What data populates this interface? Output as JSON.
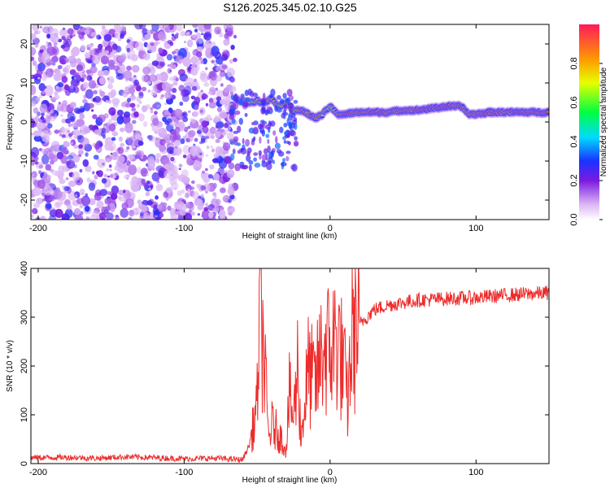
{
  "title": "S126.2025.345.02.10.G25",
  "colors": {
    "snr_line": "#ee2b2b",
    "spec_lowest": "#d9b3f5",
    "spec_highest": "#ff1a33"
  },
  "chart_data": [
    {
      "type": "heatmap",
      "title": "S126.2025.345.02.10.G25",
      "xlabel": "Height of straight line (km)",
      "ylabel": "Frequency (Hz)",
      "xlim": [
        -205,
        150
      ],
      "ylim": [
        -25,
        25
      ],
      "xticks": [
        -200,
        -100,
        0,
        100
      ],
      "yticks": [
        -20,
        -10,
        0,
        10,
        20
      ],
      "colorbar": {
        "label": "Normalized spectral amplitude",
        "range": [
          0,
          1
        ],
        "ticks": [
          "0.0",
          "0.2",
          "0.4",
          "0.6",
          "0.8"
        ]
      },
      "ridge": {
        "x": [
          -65,
          -60,
          -55,
          -50,
          -45,
          -40,
          -35,
          -30,
          -25,
          -20,
          -15,
          -10,
          -5,
          0,
          5,
          10,
          20,
          30,
          40,
          50,
          60,
          70,
          80,
          90,
          95,
          100,
          110,
          120,
          130,
          140,
          150
        ],
        "freq": [
          6,
          5,
          5,
          5.5,
          5,
          6,
          4,
          5,
          3,
          3,
          2,
          1,
          2,
          4,
          2,
          2,
          2.5,
          2.5,
          2.5,
          3,
          3,
          3.5,
          4,
          4,
          2,
          2,
          2.5,
          2.5,
          2.5,
          2.5,
          2.5
        ],
        "amplitude": [
          0.35,
          0.5,
          0.65,
          0.7,
          0.75,
          0.8,
          0.7,
          0.8,
          0.75,
          0.85,
          0.8,
          0.9,
          0.75,
          0.7,
          0.8,
          0.95,
          0.9,
          0.95,
          0.9,
          0.85,
          0.9,
          0.95,
          0.95,
          0.9,
          0.8,
          0.9,
          0.95,
          0.9,
          0.95,
          0.9,
          0.95
        ]
      },
      "noise_region_x": [
        -205,
        -65
      ],
      "noise_amplitude": [
        0.02,
        0.25
      ]
    },
    {
      "type": "line",
      "xlabel": "Height of straight line (km)",
      "ylabel": "SNR (10 * v/v)",
      "xlim": [
        -205,
        150
      ],
      "ylim": [
        0,
        400
      ],
      "xticks": [
        -200,
        -100,
        0,
        100
      ],
      "yticks": [
        0,
        100,
        200,
        300,
        400
      ],
      "series": [
        {
          "name": "SNR",
          "x": [
            -205,
            -180,
            -160,
            -140,
            -120,
            -100,
            -80,
            -60,
            -55,
            -50,
            -48,
            -46,
            -44,
            -42,
            -40,
            -35,
            -30,
            -28,
            -25,
            -22,
            -20,
            -15,
            -10,
            -5,
            0,
            5,
            10,
            12,
            15,
            20,
            25,
            30,
            40,
            50,
            60,
            80,
            100,
            120,
            150
          ],
          "y": [
            12,
            13,
            11,
            14,
            12,
            10,
            11,
            8,
            40,
            120,
            390,
            250,
            150,
            50,
            80,
            60,
            30,
            140,
            90,
            210,
            50,
            190,
            160,
            240,
            230,
            260,
            180,
            120,
            260,
            285,
            300,
            315,
            325,
            330,
            335,
            338,
            340,
            345,
            350
          ]
        }
      ]
    }
  ]
}
